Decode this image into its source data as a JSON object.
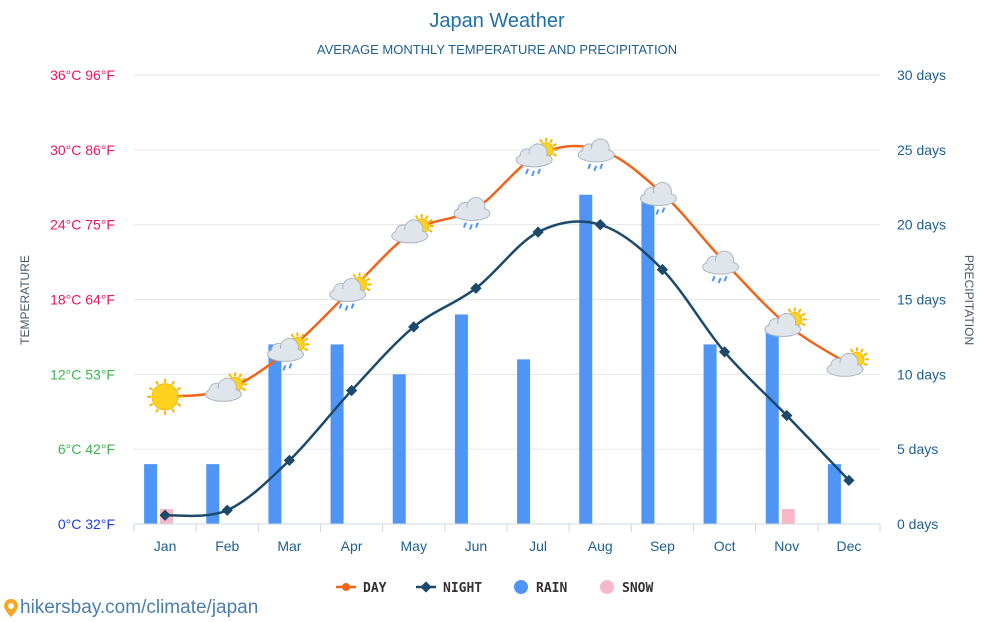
{
  "chart_data": {
    "type": "bar+line",
    "title": "Japan Weather",
    "subtitle": "AVERAGE MONTHLY TEMPERATURE AND PRECIPITATION",
    "categories": [
      "Jan",
      "Feb",
      "Mar",
      "Apr",
      "May",
      "Jun",
      "Jul",
      "Aug",
      "Sep",
      "Oct",
      "Nov",
      "Dec"
    ],
    "y_left": {
      "label": "TEMPERATURE",
      "ticks": [
        {
          "value": 0,
          "label": "0°C 32°F",
          "color": "#1a3fe0"
        },
        {
          "value": 6,
          "label": "6°C 42°F",
          "color": "#3fb34f"
        },
        {
          "value": 12,
          "label": "12°C 53°F",
          "color": "#3fb34f"
        },
        {
          "value": 18,
          "label": "18°C 64°F",
          "color": "#e8175d"
        },
        {
          "value": 24,
          "label": "24°C 75°F",
          "color": "#e8175d"
        },
        {
          "value": 30,
          "label": "30°C 86°F",
          "color": "#e8175d"
        },
        {
          "value": 36,
          "label": "36°C 96°F",
          "color": "#e8175d"
        }
      ],
      "range": [
        0,
        36
      ]
    },
    "y_right": {
      "label": "PRECIPITATION",
      "ticks": [
        {
          "value": 0,
          "label": "0 days"
        },
        {
          "value": 5,
          "label": "5 days"
        },
        {
          "value": 10,
          "label": "10 days"
        },
        {
          "value": 15,
          "label": "15 days"
        },
        {
          "value": 20,
          "label": "20 days"
        },
        {
          "value": 25,
          "label": "25 days"
        },
        {
          "value": 30,
          "label": "30 days"
        }
      ],
      "range": [
        0,
        30
      ]
    },
    "series": [
      {
        "name": "DAY",
        "kind": "line",
        "axis": "left",
        "color": "#f26419",
        "values": [
          10.2,
          10.8,
          14.0,
          18.8,
          23.5,
          25.3,
          29.6,
          30.0,
          26.5,
          21.0,
          16.0,
          12.8
        ]
      },
      {
        "name": "NIGHT",
        "kind": "line",
        "axis": "left",
        "color": "#1d4a6b",
        "values": [
          0.7,
          1.1,
          5.1,
          10.7,
          15.8,
          18.9,
          23.4,
          24.0,
          20.4,
          13.8,
          8.7,
          3.5
        ]
      },
      {
        "name": "RAIN",
        "kind": "bar",
        "axis": "right",
        "color": "#4f95f5",
        "values": [
          4,
          4,
          12,
          12,
          10,
          14,
          11,
          22,
          22,
          12,
          13,
          4
        ]
      },
      {
        "name": "SNOW",
        "kind": "bar",
        "axis": "right",
        "color": "#f7b8c8",
        "values": [
          1,
          0,
          0,
          0,
          0,
          0,
          0,
          0,
          0,
          0,
          1,
          0
        ]
      }
    ],
    "weather_icons": [
      "sun",
      "sun-cloud",
      "sun-cloud-rain",
      "sun-cloud-rain",
      "sun-cloud",
      "cloud-rain",
      "sun-cloud-rain",
      "cloud-rain",
      "cloud-rain",
      "cloud-rain",
      "sun-cloud",
      "sun-cloud"
    ],
    "legend": {
      "position": "bottom-center"
    },
    "grid": true
  },
  "source": {
    "text": "hikersbay.com/climate/japan",
    "icon": "location-pin-icon"
  }
}
